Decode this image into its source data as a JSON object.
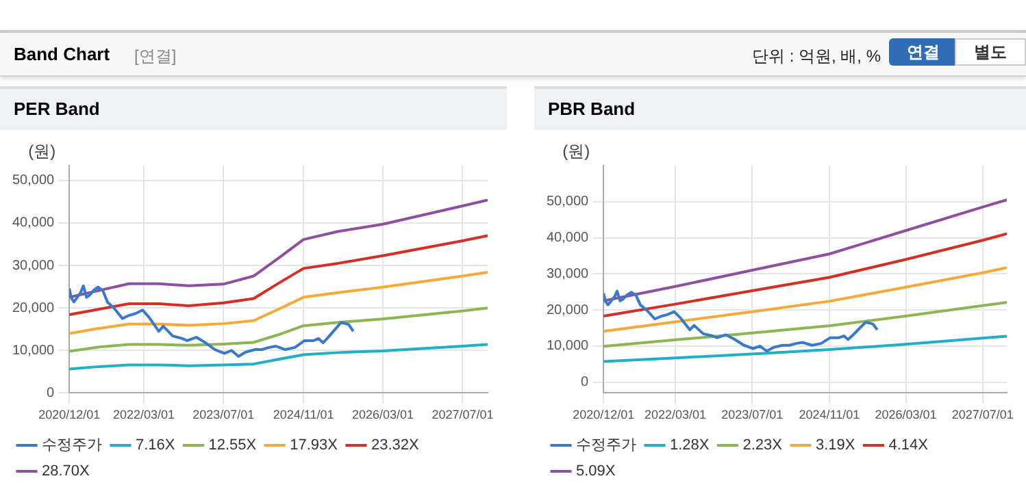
{
  "chart_data": [
    {
      "type": "other",
      "title": "Band Chart",
      "annotations": [
        "[연결]",
        "단위 : 억원, 배, %",
        "연결",
        "별도"
      ]
    },
    {
      "type": "line",
      "title": "PER Band",
      "ylabel": "(원)",
      "xlim": [
        "2020-12-01",
        "2027-12-01"
      ],
      "xticks": [
        {
          "value": "2020-12-01",
          "label": "2020/12/01"
        },
        {
          "value": "2022-03-01",
          "label": "2022/03/01"
        },
        {
          "value": "2023-07-01",
          "label": "2023/07/01"
        },
        {
          "value": "2024-11-01",
          "label": "2024/11/01"
        },
        {
          "value": "2026-03-01",
          "label": "2026/03/01"
        },
        {
          "value": "2027-07-01",
          "label": "2027/07/01"
        }
      ],
      "ylim": [
        0,
        53500
      ],
      "yticks": [
        0,
        {
          "value": 10000,
          "label": "10,000"
        },
        {
          "value": 20000,
          "label": "20,000"
        },
        {
          "value": 30000,
          "label": "30,000"
        },
        {
          "value": 40000,
          "label": "40,000"
        },
        {
          "value": 50000,
          "label": "50,000"
        }
      ],
      "grid": true,
      "legend": "bottom",
      "marker": "none",
      "line_style": "solid",
      "x": [
        "2020-12-01",
        "2021-06-01",
        "2021-12-01",
        "2022-06-01",
        "2022-12-01",
        "2023-07-01",
        "2024-01-01",
        "2024-06-01",
        "2024-11-01",
        "2025-06-01",
        "2026-03-01",
        "2027-07-01",
        "2027-12-01"
      ],
      "series": [
        {
          "name": "수정주가",
          "color": "#3a78c9",
          "x": [
            "2020-12-01",
            "2020-12-12",
            "2020-12-29",
            "2021-01-19",
            "2021-02-08",
            "2021-02-25",
            "2021-03-16",
            "2021-04-04",
            "2021-04-28",
            "2021-05-25",
            "2021-06-24",
            "2021-07-22",
            "2021-09-04",
            "2021-10-22",
            "2021-11-28",
            "2022-01-10",
            "2022-02-22",
            "2022-04-04",
            "2022-06-01",
            "2022-06-28",
            "2022-08-25",
            "2022-10-22",
            "2022-11-21",
            "2023-01-16",
            "2023-03-13",
            "2023-05-10",
            "2023-07-07",
            "2023-08-19",
            "2023-10-01",
            "2023-11-13",
            "2024-01-10",
            "2024-02-21",
            "2024-04-04",
            "2024-05-16",
            "2024-07-13",
            "2024-09-10",
            "2024-11-07",
            "2025-01-01",
            "2025-02-01",
            "2025-02-28",
            "2025-03-25",
            "2025-05-07",
            "2025-06-19",
            "2025-08-04",
            "2025-09-01"
          ],
          "values": [
            24600,
            22500,
            21400,
            22500,
            23600,
            25200,
            22500,
            23000,
            24100,
            24900,
            24100,
            21400,
            19800,
            17500,
            18200,
            18700,
            19500,
            17700,
            14500,
            15700,
            13400,
            12800,
            12300,
            13100,
            11800,
            10200,
            9300,
            10000,
            8600,
            9600,
            10200,
            10200,
            10700,
            11000,
            10200,
            10700,
            12300,
            12300,
            12800,
            11800,
            12800,
            14700,
            16600,
            16100,
            14500
          ]
        },
        {
          "name": "7.16X",
          "color": "#1fb0c8",
          "values": [
            5600,
            6200,
            6600,
            6600,
            6400,
            6600,
            6800,
            7900,
            9000,
            9500,
            9900,
            11000,
            11400
          ]
        },
        {
          "name": "12.55X",
          "color": "#8cb653",
          "values": [
            9800,
            10800,
            11400,
            11400,
            11200,
            11500,
            11900,
            13700,
            15800,
            16600,
            17400,
            19300,
            20000
          ]
        },
        {
          "name": "17.93X",
          "color": "#f5a93a",
          "values": [
            14000,
            15200,
            16200,
            16200,
            15900,
            16300,
            17000,
            19700,
            22500,
            23600,
            24900,
            27500,
            28400
          ]
        },
        {
          "name": "23.32X",
          "color": "#d22f27",
          "values": [
            18400,
            19700,
            21000,
            21000,
            20500,
            21200,
            22200,
            25800,
            29300,
            30500,
            32300,
            35800,
            37000
          ]
        },
        {
          "name": "28.70X",
          "color": "#8e4fa0",
          "values": [
            22500,
            24100,
            25700,
            25700,
            25200,
            25600,
            27500,
            31700,
            36100,
            38000,
            39700,
            44000,
            45400
          ]
        }
      ]
    },
    {
      "type": "line",
      "title": "PBR Band",
      "ylabel": "(원)",
      "xlim": [
        "2020-12-01",
        "2027-12-01"
      ],
      "xticks": [
        {
          "value": "2020-12-01",
          "label": "2020/12/01"
        },
        {
          "value": "2022-03-01",
          "label": "2022/03/01"
        },
        {
          "value": "2023-07-01",
          "label": "2023/07/01"
        },
        {
          "value": "2024-11-01",
          "label": "2024/11/01"
        },
        {
          "value": "2026-03-01",
          "label": "2026/03/01"
        },
        {
          "value": "2027-07-01",
          "label": "2027/07/01"
        }
      ],
      "ylim": [
        -3000,
        60000
      ],
      "yticks": [
        0,
        {
          "value": 10000,
          "label": "10,000"
        },
        {
          "value": 20000,
          "label": "20,000"
        },
        {
          "value": 30000,
          "label": "30,000"
        },
        {
          "value": 40000,
          "label": "40,000"
        },
        {
          "value": 50000,
          "label": "50,000"
        }
      ],
      "grid": true,
      "legend": "bottom",
      "marker": "none",
      "line_style": "solid",
      "x": [
        "2020-12-01",
        "2022-03-01",
        "2023-07-01",
        "2024-11-01",
        "2026-03-01",
        "2027-07-01",
        "2027-12-01"
      ],
      "series": [
        {
          "name": "수정주가",
          "color": "#3a78c9",
          "x": [
            "2020-12-01",
            "2020-12-12",
            "2020-12-29",
            "2021-01-19",
            "2021-02-08",
            "2021-02-25",
            "2021-03-16",
            "2021-04-04",
            "2021-04-28",
            "2021-05-25",
            "2021-06-24",
            "2021-07-22",
            "2021-09-04",
            "2021-10-22",
            "2021-11-28",
            "2022-01-10",
            "2022-02-22",
            "2022-04-04",
            "2022-06-01",
            "2022-06-28",
            "2022-08-25",
            "2022-10-22",
            "2022-11-21",
            "2023-01-16",
            "2023-03-13",
            "2023-05-10",
            "2023-07-07",
            "2023-08-19",
            "2023-10-01",
            "2023-11-13",
            "2024-01-10",
            "2024-02-21",
            "2024-04-04",
            "2024-05-16",
            "2024-07-13",
            "2024-09-10",
            "2024-11-07",
            "2025-01-01",
            "2025-02-01",
            "2025-02-28",
            "2025-03-25",
            "2025-05-07",
            "2025-06-19",
            "2025-08-04",
            "2025-09-01"
          ],
          "values": [
            24600,
            22500,
            21400,
            22500,
            23600,
            25200,
            22500,
            23000,
            24100,
            24900,
            24100,
            21400,
            19800,
            17500,
            18200,
            18700,
            19500,
            17700,
            14500,
            15700,
            13400,
            12800,
            12300,
            13100,
            11800,
            10200,
            9300,
            10000,
            8600,
            9600,
            10200,
            10200,
            10700,
            11000,
            10200,
            10700,
            12300,
            12300,
            12800,
            11800,
            12800,
            14700,
            16600,
            16100,
            14500
          ]
        },
        {
          "name": "1.28X",
          "color": "#1fb0c8",
          "values": [
            5700,
            6700,
            7800,
            9000,
            10500,
            12200,
            12700
          ]
        },
        {
          "name": "2.23X",
          "color": "#8cb653",
          "values": [
            9900,
            11700,
            13600,
            15600,
            18300,
            21200,
            22100
          ]
        },
        {
          "name": "3.19X",
          "color": "#f5a93a",
          "values": [
            14100,
            16700,
            19500,
            22400,
            26300,
            30300,
            31700
          ]
        },
        {
          "name": "4.14X",
          "color": "#d22f27",
          "values": [
            18300,
            21600,
            25300,
            29000,
            34000,
            39300,
            41100
          ]
        },
        {
          "name": "5.09X",
          "color": "#8e4fa0",
          "values": [
            22500,
            26500,
            31000,
            35500,
            42000,
            48500,
            50500
          ]
        }
      ]
    }
  ]
}
